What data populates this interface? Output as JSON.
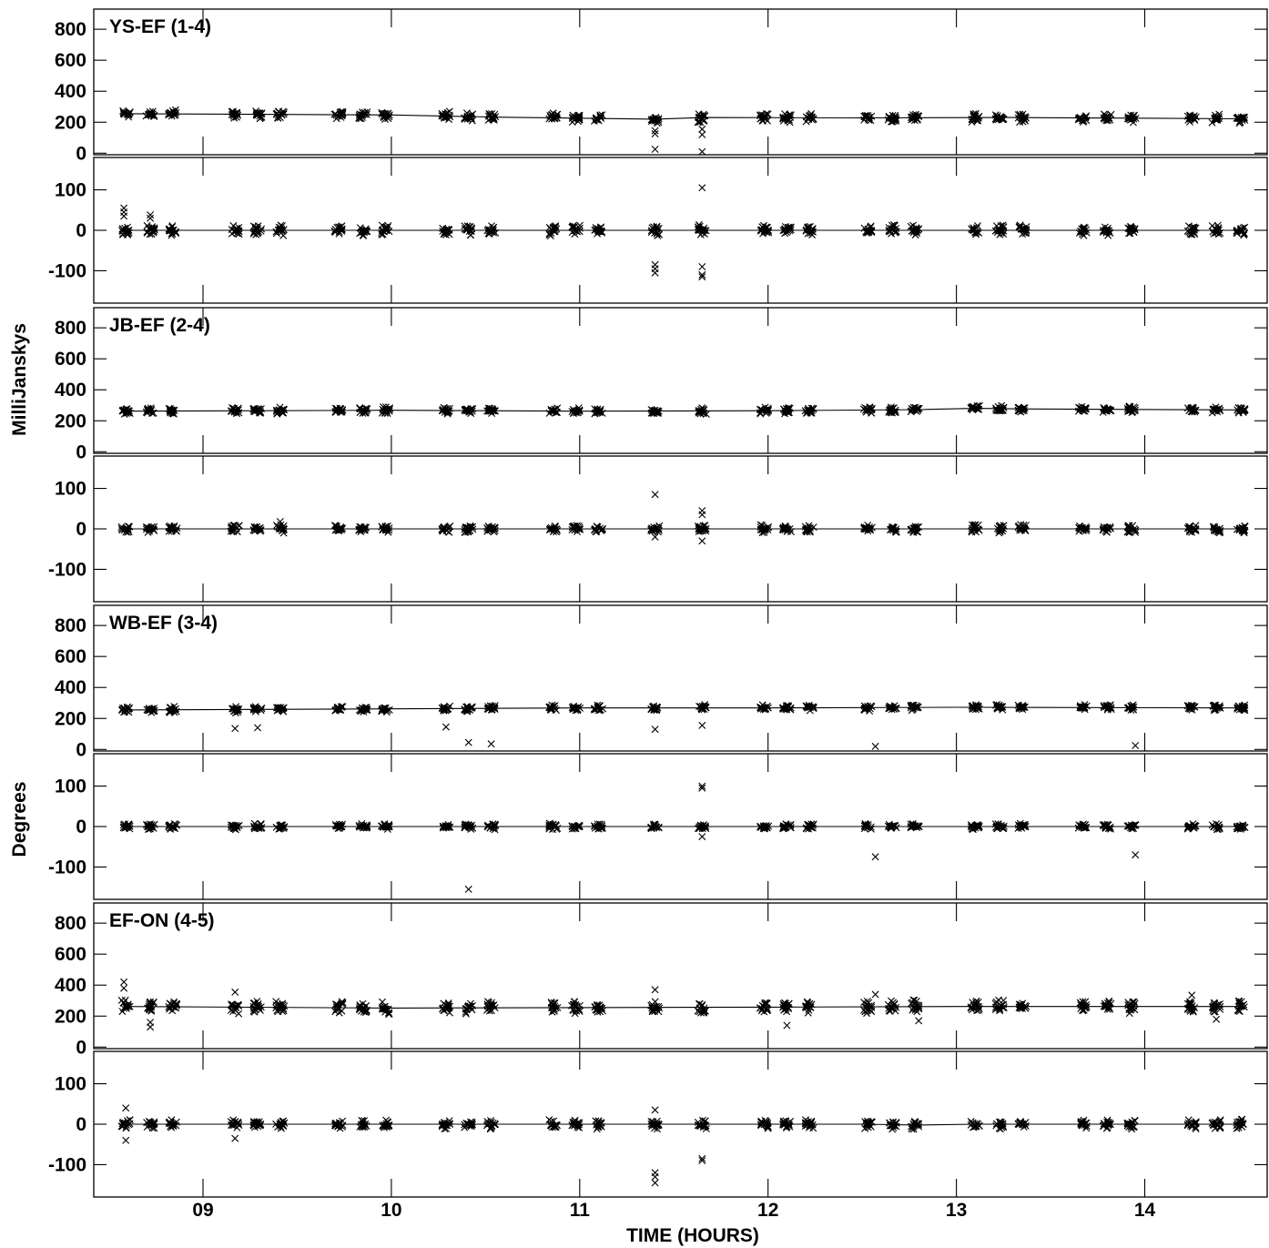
{
  "chart_data": {
    "type": "scatter",
    "xlabel": "TIME (HOURS)",
    "xlim": [
      8.42,
      14.65
    ],
    "xticks": [
      "09",
      "10",
      "11",
      "12",
      "13",
      "14"
    ],
    "xtick_values": [
      9,
      10,
      11,
      12,
      13,
      14
    ],
    "ylabels": {
      "amplitude": "MilliJanskys",
      "phase": "Degrees"
    },
    "amp_ylim": [
      -10,
      930
    ],
    "amp_ticks": [
      0,
      200,
      400,
      600,
      800
    ],
    "phase_ylim": [
      -180,
      180
    ],
    "phase_ticks": [
      -100,
      0,
      100
    ],
    "marker": "x",
    "scans": [
      8.59,
      8.72,
      8.84,
      9.17,
      9.29,
      9.41,
      9.72,
      9.85,
      9.97,
      10.29,
      10.41,
      10.53,
      10.86,
      10.98,
      11.1,
      11.4,
      11.65,
      11.98,
      12.1,
      12.22,
      12.53,
      12.66,
      12.78,
      13.1,
      13.23,
      13.35,
      13.67,
      13.8,
      13.93,
      14.25,
      14.38,
      14.51
    ],
    "baselines": [
      {
        "name": "YS-EF (1-4)",
        "amp_model": [
          [
            8.59,
            255
          ],
          [
            9.4,
            250
          ],
          [
            10.0,
            247
          ],
          [
            10.6,
            232
          ],
          [
            11.4,
            220
          ],
          [
            11.65,
            230
          ],
          [
            12.5,
            228
          ],
          [
            13.3,
            230
          ],
          [
            14.51,
            222
          ]
        ],
        "amp_spread": 40,
        "phase_model": [
          [
            8.59,
            0
          ],
          [
            14.51,
            0
          ]
        ],
        "phase_spread": 18,
        "amp_outliers": [
          [
            11.4,
            25
          ],
          [
            11.4,
            125
          ],
          [
            11.4,
            145
          ],
          [
            11.65,
            10
          ],
          [
            11.65,
            120
          ],
          [
            11.65,
            155
          ]
        ],
        "phase_outliers": [
          [
            8.58,
            55
          ],
          [
            8.58,
            45
          ],
          [
            8.58,
            35
          ],
          [
            8.72,
            38
          ],
          [
            8.72,
            30
          ],
          [
            11.65,
            105
          ],
          [
            11.4,
            -85
          ],
          [
            11.4,
            -95
          ],
          [
            11.4,
            -105
          ],
          [
            11.65,
            -90
          ],
          [
            11.65,
            -110
          ],
          [
            11.65,
            -115
          ]
        ]
      },
      {
        "name": "JB-EF (2-4)",
        "amp_model": [
          [
            8.59,
            262
          ],
          [
            10.0,
            268
          ],
          [
            11.0,
            262
          ],
          [
            12.0,
            265
          ],
          [
            12.8,
            272
          ],
          [
            13.1,
            280
          ],
          [
            13.4,
            276
          ],
          [
            14.51,
            270
          ]
        ],
        "amp_spread": 30,
        "phase_model": [
          [
            8.59,
            0
          ],
          [
            14.51,
            0
          ]
        ],
        "phase_spread": 14,
        "amp_outliers": [],
        "phase_outliers": [
          [
            11.4,
            85
          ],
          [
            11.65,
            45
          ],
          [
            11.65,
            35
          ],
          [
            11.65,
            -30
          ],
          [
            9.41,
            18
          ],
          [
            11.4,
            -20
          ]
        ]
      },
      {
        "name": "WB-EF (3-4)",
        "amp_model": [
          [
            8.59,
            255
          ],
          [
            10.0,
            262
          ],
          [
            11.0,
            268
          ],
          [
            12.0,
            268
          ],
          [
            13.0,
            272
          ],
          [
            14.51,
            268
          ]
        ],
        "amp_spread": 28,
        "phase_model": [
          [
            8.59,
            0
          ],
          [
            14.51,
            0
          ]
        ],
        "phase_spread": 10,
        "amp_outliers": [
          [
            9.17,
            135
          ],
          [
            9.29,
            140
          ],
          [
            10.29,
            145
          ],
          [
            10.41,
            45
          ],
          [
            10.53,
            35
          ],
          [
            11.4,
            130
          ],
          [
            11.65,
            155
          ],
          [
            12.57,
            20
          ],
          [
            13.95,
            25
          ]
        ],
        "phase_outliers": [
          [
            11.65,
            100
          ],
          [
            11.65,
            95
          ],
          [
            10.41,
            -155
          ],
          [
            12.57,
            -75
          ],
          [
            13.95,
            -70
          ],
          [
            11.65,
            -25
          ]
        ]
      },
      {
        "name": "EF-ON (4-5)",
        "amp_model": [
          [
            8.59,
            262
          ],
          [
            10.0,
            252
          ],
          [
            11.0,
            255
          ],
          [
            12.0,
            258
          ],
          [
            13.0,
            262
          ],
          [
            14.51,
            262
          ]
        ],
        "amp_spread": 60,
        "phase_model": [
          [
            8.59,
            0
          ],
          [
            12.5,
            0
          ],
          [
            12.8,
            -2
          ],
          [
            13.1,
            0
          ],
          [
            14.51,
            0
          ]
        ],
        "phase_spread": 16,
        "amp_outliers": [
          [
            8.58,
            420
          ],
          [
            8.58,
            380
          ],
          [
            8.72,
            130
          ],
          [
            8.72,
            160
          ],
          [
            9.17,
            355
          ],
          [
            11.4,
            370
          ],
          [
            12.1,
            140
          ],
          [
            12.57,
            340
          ],
          [
            12.8,
            170
          ],
          [
            14.38,
            180
          ],
          [
            14.25,
            335
          ]
        ],
        "phase_outliers": [
          [
            11.4,
            -120
          ],
          [
            11.4,
            -130
          ],
          [
            11.4,
            -145
          ],
          [
            11.65,
            -85
          ],
          [
            11.65,
            -90
          ],
          [
            8.59,
            40
          ],
          [
            8.59,
            -40
          ],
          [
            9.17,
            -35
          ],
          [
            11.4,
            35
          ]
        ]
      }
    ]
  }
}
